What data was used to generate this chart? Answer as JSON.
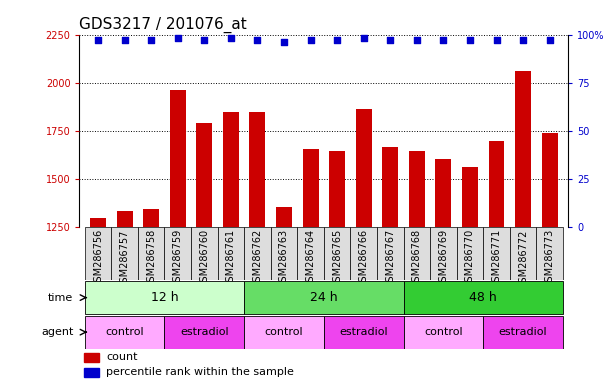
{
  "title": "GDS3217 / 201076_at",
  "samples": [
    "GSM286756",
    "GSM286757",
    "GSM286758",
    "GSM286759",
    "GSM286760",
    "GSM286761",
    "GSM286762",
    "GSM286763",
    "GSM286764",
    "GSM286765",
    "GSM286766",
    "GSM286767",
    "GSM286768",
    "GSM286769",
    "GSM286770",
    "GSM286771",
    "GSM286772",
    "GSM286773"
  ],
  "counts": [
    1295,
    1330,
    1340,
    1960,
    1790,
    1845,
    1845,
    1350,
    1655,
    1645,
    1860,
    1665,
    1645,
    1600,
    1560,
    1695,
    2060,
    1735
  ],
  "percentiles": [
    97,
    97,
    97,
    98,
    97,
    98,
    97,
    96,
    97,
    97,
    98,
    97,
    97,
    97,
    97,
    97,
    97,
    97
  ],
  "bar_color": "#cc0000",
  "dot_color": "#0000cc",
  "ylim_left": [
    1250,
    2250
  ],
  "ylim_right": [
    0,
    100
  ],
  "yticks_left": [
    1250,
    1500,
    1750,
    2000,
    2250
  ],
  "yticks_right": [
    0,
    25,
    50,
    75,
    100
  ],
  "time_groups": [
    {
      "label": "12 h",
      "start": 0,
      "end": 5,
      "color": "#ccffcc"
    },
    {
      "label": "24 h",
      "start": 6,
      "end": 11,
      "color": "#66dd66"
    },
    {
      "label": "48 h",
      "start": 12,
      "end": 17,
      "color": "#33cc33"
    }
  ],
  "agent_groups": [
    {
      "label": "control",
      "start": 0,
      "end": 2,
      "color": "#ffaaff"
    },
    {
      "label": "estradiol",
      "start": 3,
      "end": 5,
      "color": "#ee44ee"
    },
    {
      "label": "control",
      "start": 6,
      "end": 8,
      "color": "#ffaaff"
    },
    {
      "label": "estradiol",
      "start": 9,
      "end": 11,
      "color": "#ee44ee"
    },
    {
      "label": "control",
      "start": 12,
      "end": 14,
      "color": "#ffaaff"
    },
    {
      "label": "estradiol",
      "start": 15,
      "end": 17,
      "color": "#ee44ee"
    }
  ],
  "bar_width": 0.6,
  "title_fontsize": 11,
  "tick_fontsize": 7,
  "label_fontsize": 9,
  "annot_fontsize": 8,
  "xtick_bg": "#dddddd"
}
